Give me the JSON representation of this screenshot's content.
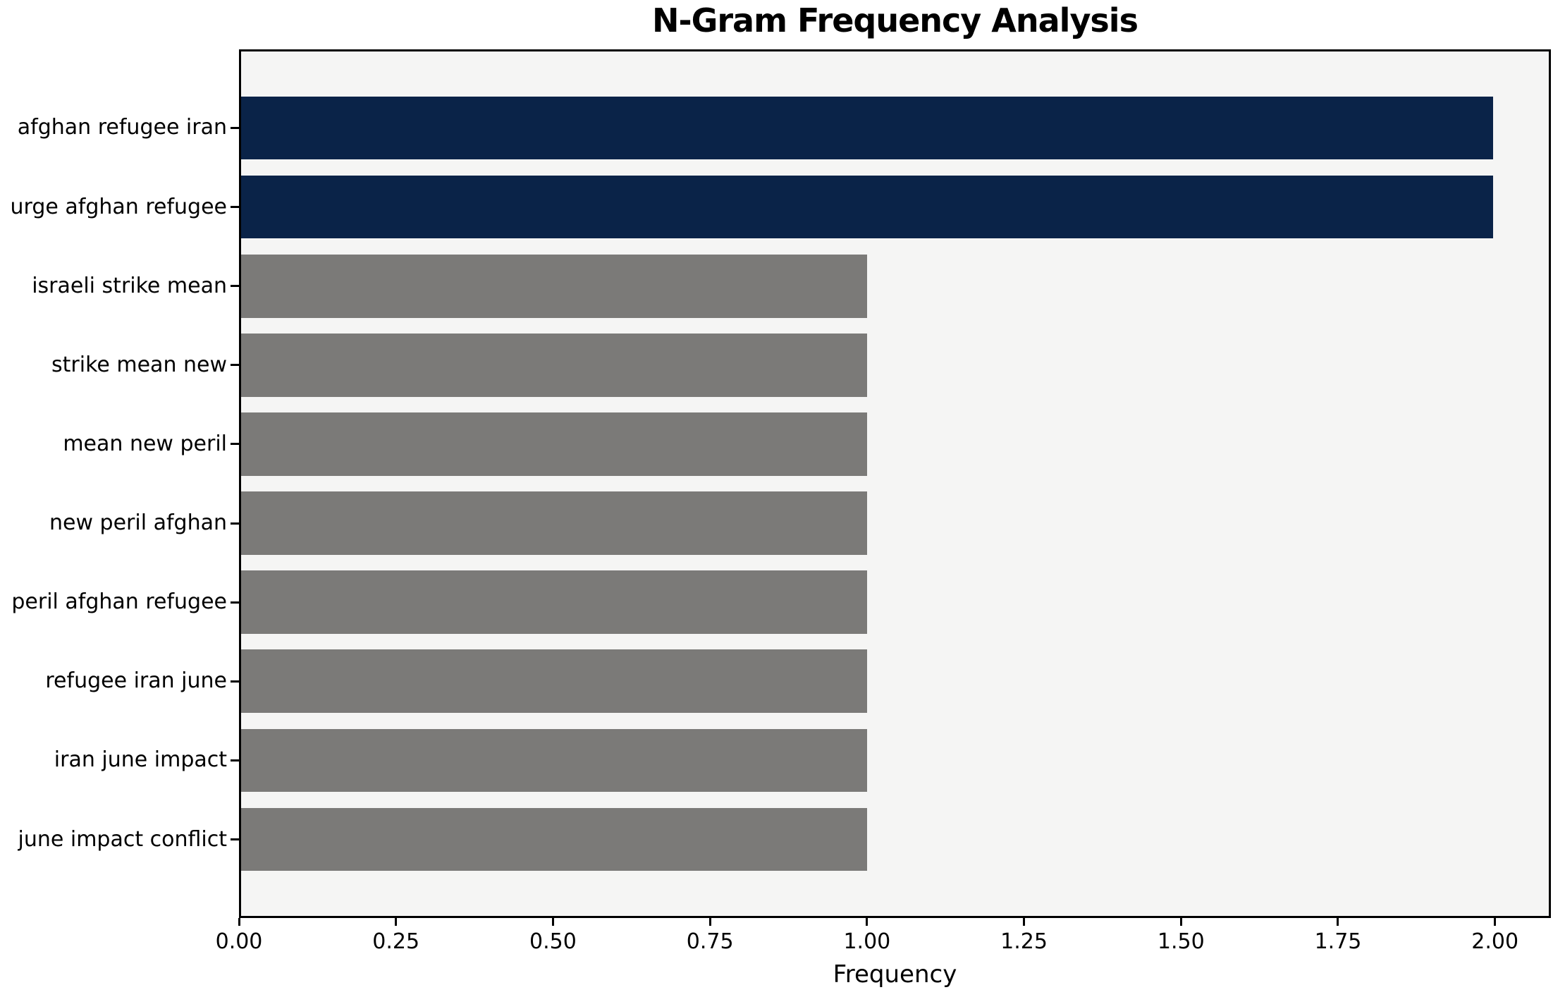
{
  "chart_data": {
    "type": "bar",
    "orientation": "horizontal",
    "title": "N-Gram Frequency Analysis",
    "xlabel": "Frequency",
    "ylabel": "",
    "categories": [
      "afghan refugee iran",
      "urge afghan refugee",
      "israeli strike mean",
      "strike mean new",
      "mean new peril",
      "new peril afghan",
      "peril afghan refugee",
      "refugee iran june",
      "iran june impact",
      "june impact conflict"
    ],
    "values": [
      2,
      2,
      1,
      1,
      1,
      1,
      1,
      1,
      1,
      1
    ],
    "bar_colors": [
      "#0a2348",
      "#0a2348",
      "#7b7a78",
      "#7b7a78",
      "#7b7a78",
      "#7b7a78",
      "#7b7a78",
      "#7b7a78",
      "#7b7a78",
      "#7b7a78"
    ],
    "highlight_color": "#0a2348",
    "default_color": "#7b7a78",
    "plot_background": "#f5f5f4",
    "spine_color": "#000000",
    "xlim": [
      0,
      2.089
    ],
    "x_ticks": [
      0,
      0.25,
      0.5,
      0.75,
      1.0,
      1.25,
      1.5,
      1.75,
      2.0
    ],
    "x_tick_labels": [
      "0.00",
      "0.25",
      "0.50",
      "0.75",
      "1.00",
      "1.25",
      "1.50",
      "1.75",
      "2.00"
    ],
    "grid": false,
    "legend": null,
    "bar_height_fraction": 0.8,
    "y_axis_margin_fraction": 0.05
  }
}
